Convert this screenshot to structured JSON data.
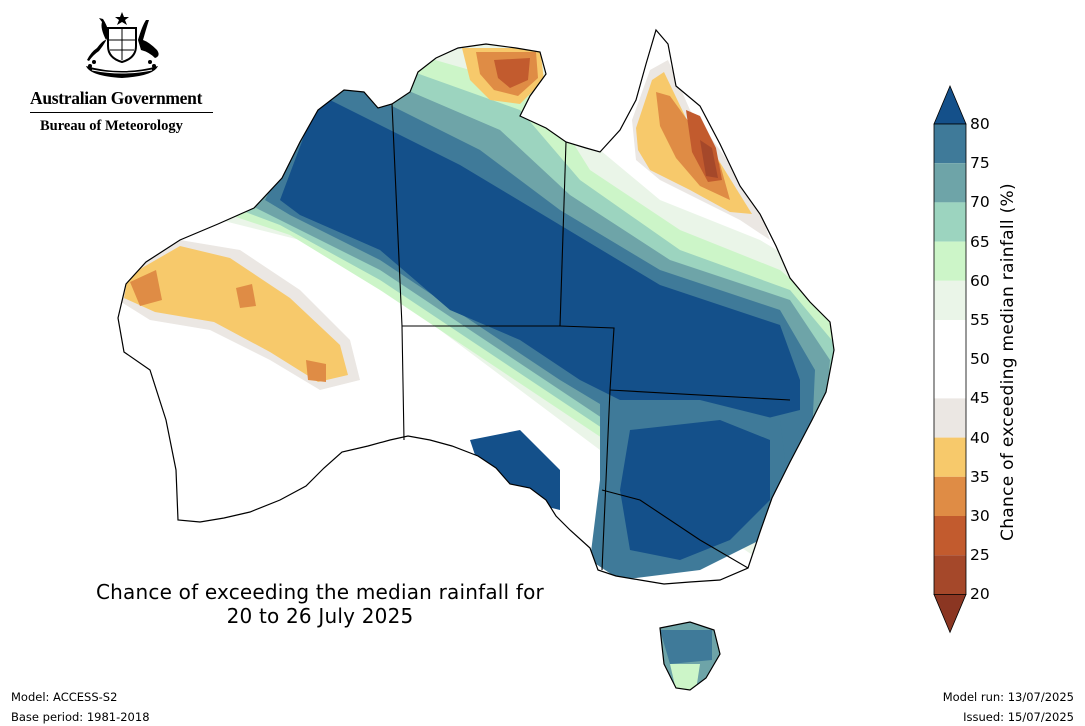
{
  "header": {
    "government": "Australian Government",
    "agency": "Bureau of Meteorology"
  },
  "map": {
    "title_line1": "Chance of exceeding the median rainfall for",
    "title_line2": "20 to 26 July 2025",
    "icon": "coat-of-arms-icon",
    "region_colors": {
      "below_40": "#f7c96b",
      "below_35": "#df8c45",
      "below_30": "#c25b2e",
      "below_25": "#9c3a22",
      "neutral_low": "#ebe7e3",
      "neutral": "#ffffff",
      "above_55": "#eaf5e8",
      "above_60": "#ccf5c8",
      "above_65": "#9cd4bf",
      "above_70": "#6ea4a8",
      "above_75": "#3f7a99",
      "above_80": "#14508a"
    }
  },
  "colorbar": {
    "label": "Chance of exceeding median rainfall (%)",
    "ticks": [
      "80",
      "75",
      "70",
      "65",
      "60",
      "55",
      "50",
      "45",
      "40",
      "35",
      "30",
      "25",
      "20"
    ],
    "colors": [
      "#14508a",
      "#3f7a99",
      "#6ea4a8",
      "#9cd4bf",
      "#ccf5c8",
      "#eaf5e8",
      "#ffffff",
      "#ffffff",
      "#ebe7e3",
      "#f7c96b",
      "#df8c45",
      "#c25b2e",
      "#a5482a",
      "#8b3622"
    ]
  },
  "footer": {
    "model": "Model: ACCESS-S2",
    "base_period": "Base period: 1981-2018",
    "model_run": "Model run: 13/07/2025",
    "issued": "Issued: 15/07/2025"
  }
}
